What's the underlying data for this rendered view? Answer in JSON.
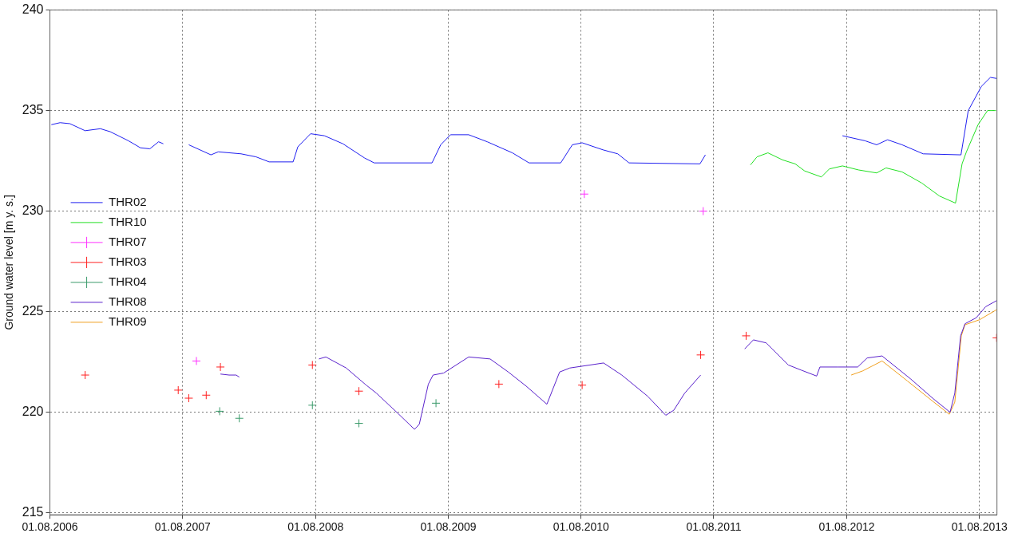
{
  "chart_data": {
    "type": "line",
    "ylabel": "Ground water level [m y. s.]",
    "xlim": [
      "2006-08-01",
      "2013-09-18"
    ],
    "xticks": [
      {
        "value": "2006-08-01",
        "label": "01.08.2006"
      },
      {
        "value": "2007-08-01",
        "label": "01.08.2007"
      },
      {
        "value": "2008-08-01",
        "label": "01.08.2008"
      },
      {
        "value": "2009-08-01",
        "label": "01.08.2009"
      },
      {
        "value": "2010-08-01",
        "label": "01.08.2010"
      },
      {
        "value": "2011-08-01",
        "label": "01.08.2011"
      },
      {
        "value": "2012-08-01",
        "label": "01.08.2012"
      },
      {
        "value": "2013-08-01",
        "label": "01.08.2013"
      }
    ],
    "ylim": [
      214.9,
      240
    ],
    "yticks": [
      215,
      220,
      225,
      230,
      235,
      240
    ],
    "grid": true,
    "legend": "left",
    "series": [
      {
        "name": "THR02",
        "type": "line",
        "marker": "none",
        "color": "#1f1ff0",
        "x": [
          "2006-08-05",
          "2006-08-29",
          "2006-09-25",
          "2006-11-06",
          "2006-12-18",
          "2007-01-14",
          "2007-03-05",
          "2007-04-07",
          "2007-05-03",
          "2007-05-27",
          "2007-06-09",
          "2007-07-15",
          "2007-08-18",
          "2007-10-18",
          "2007-11-07",
          "2008-01-09",
          "2008-02-19",
          "2008-03-26",
          "2008-05-31",
          "2008-06-13",
          "2008-07-18",
          "2008-08-25",
          "2008-10-15",
          "2008-12-13",
          "2009-01-09",
          "2009-06-17",
          "2009-07-11",
          "2009-08-07",
          "2009-09-26",
          "2009-11-16",
          "2010-01-24",
          "2010-03-11",
          "2010-06-06",
          "2010-07-08",
          "2010-08-04",
          "2010-09-30",
          "2010-11-10",
          "2010-12-11",
          "2011-06-24",
          "2011-07-09",
          "2012-01-01",
          "2012-07-20",
          "2012-09-20",
          "2012-10-22",
          "2012-11-21",
          "2012-12-31",
          "2013-02-27",
          "2013-06-11",
          "2013-07-01",
          "2013-08-06",
          "2013-08-31",
          "2013-09-17"
        ],
        "values": [
          234.3,
          234.4,
          234.35,
          234.0,
          234.1,
          233.95,
          233.5,
          233.15,
          233.1,
          233.45,
          233.35,
          null,
          233.3,
          232.8,
          232.95,
          232.85,
          232.7,
          232.45,
          232.45,
          233.2,
          233.85,
          233.75,
          233.35,
          232.65,
          232.4,
          232.4,
          233.3,
          233.8,
          233.8,
          233.45,
          232.9,
          232.4,
          232.4,
          233.3,
          233.4,
          233.05,
          232.85,
          232.4,
          232.35,
          232.8,
          null,
          233.75,
          233.5,
          233.3,
          233.55,
          233.3,
          232.85,
          232.8,
          235.0,
          236.2,
          236.65,
          236.6
        ]
      },
      {
        "name": "THR10",
        "type": "line",
        "marker": "none",
        "color": "#22e022",
        "x": [
          "2011-11-10",
          "2011-11-28",
          "2011-12-28",
          "2012-02-06",
          "2012-03-12",
          "2012-04-07",
          "2012-05-23",
          "2012-06-14",
          "2012-07-20",
          "2012-09-02",
          "2012-10-22",
          "2012-11-17",
          "2012-12-31",
          "2013-02-23",
          "2013-04-13",
          "2013-05-27",
          "2013-06-14",
          "2013-06-26",
          "2013-07-28",
          "2013-08-23",
          "2013-09-15"
        ],
        "values": [
          232.3,
          232.7,
          232.9,
          232.55,
          232.35,
          232.0,
          231.7,
          232.1,
          232.25,
          232.05,
          231.9,
          232.15,
          231.95,
          231.4,
          230.75,
          230.4,
          232.35,
          232.95,
          234.3,
          235.0,
          235.0
        ]
      },
      {
        "name": "THR07",
        "type": "scatter",
        "marker": "cross",
        "color": "#ff30ff",
        "x": [
          "2007-09-08",
          "2010-08-10",
          "2011-07-03"
        ],
        "values": [
          222.55,
          230.85,
          230.0
        ]
      },
      {
        "name": "THR03",
        "type": "scatter",
        "marker": "cross",
        "color": "#ff2020",
        "x": [
          "2006-11-06",
          "2007-07-20",
          "2007-08-18",
          "2007-10-05",
          "2007-11-13",
          "2008-07-23",
          "2008-11-28",
          "2009-12-18",
          "2010-08-04",
          "2011-06-26",
          "2011-10-29",
          "2013-09-17"
        ],
        "values": [
          221.85,
          221.1,
          220.7,
          220.85,
          222.25,
          222.35,
          221.05,
          221.4,
          221.35,
          222.85,
          223.8,
          223.7
        ]
      },
      {
        "name": "THR04",
        "type": "scatter",
        "marker": "cross",
        "color": "#3a9a6a",
        "x": [
          "2007-11-11",
          "2008-01-04",
          "2008-07-23",
          "2008-11-28",
          "2009-06-28"
        ],
        "values": [
          220.05,
          219.7,
          220.35,
          219.45,
          220.45
        ]
      },
      {
        "name": "THR08",
        "type": "line",
        "marker": "none",
        "color": "#5a22cc",
        "x": [
          "2007-11-13",
          "2007-12-07",
          "2007-12-26",
          "2008-01-04",
          "2008-04-01",
          "2008-08-10",
          "2008-08-29",
          "2008-10-24",
          "2008-12-18",
          "2009-01-15",
          "2009-03-15",
          "2009-04-30",
          "2009-05-13",
          "2009-06-07",
          "2009-06-20",
          "2009-07-19",
          "2009-09-26",
          "2009-11-24",
          "2010-01-13",
          "2010-03-03",
          "2010-04-29",
          "2010-06-03",
          "2010-07-01",
          "2010-10-02",
          "2010-11-21",
          "2011-01-31",
          "2011-03-22",
          "2011-04-13",
          "2011-05-13",
          "2011-06-26",
          "2011-09-01",
          "2011-10-25",
          "2011-11-18",
          "2011-12-23",
          "2012-02-22",
          "2012-03-28",
          "2012-05-10",
          "2012-05-19",
          "2012-07-08",
          "2012-08-31",
          "2012-09-26",
          "2012-11-06",
          "2013-01-24",
          "2013-03-25",
          "2013-05-12",
          "2013-05-25",
          "2013-06-10",
          "2013-06-22",
          "2013-07-23",
          "2013-08-18",
          "2013-09-17"
        ],
        "values": [
          221.9,
          221.85,
          221.85,
          221.75,
          null,
          222.65,
          222.75,
          222.2,
          221.35,
          220.95,
          219.95,
          219.15,
          219.4,
          221.4,
          221.85,
          221.95,
          222.75,
          222.65,
          222.0,
          221.3,
          220.4,
          222.0,
          222.2,
          222.45,
          221.85,
          220.8,
          219.85,
          220.1,
          220.95,
          221.85,
          null,
          223.15,
          223.6,
          223.45,
          222.35,
          222.1,
          221.8,
          222.25,
          222.25,
          222.25,
          222.7,
          222.8,
          221.65,
          220.7,
          220.0,
          220.95,
          223.8,
          224.4,
          224.7,
          225.25,
          225.55
        ]
      },
      {
        "name": "THR09",
        "type": "line",
        "marker": "none",
        "color": "#f0a020",
        "x": [
          "2012-08-13",
          "2012-09-13",
          "2012-11-06",
          "2013-01-15",
          "2013-03-25",
          "2013-05-10",
          "2013-05-25",
          "2013-06-12",
          "2013-06-22",
          "2013-08-01",
          "2013-09-17"
        ],
        "values": [
          221.85,
          222.05,
          222.55,
          221.55,
          220.55,
          219.9,
          220.5,
          223.8,
          224.35,
          224.6,
          225.1
        ]
      }
    ]
  }
}
